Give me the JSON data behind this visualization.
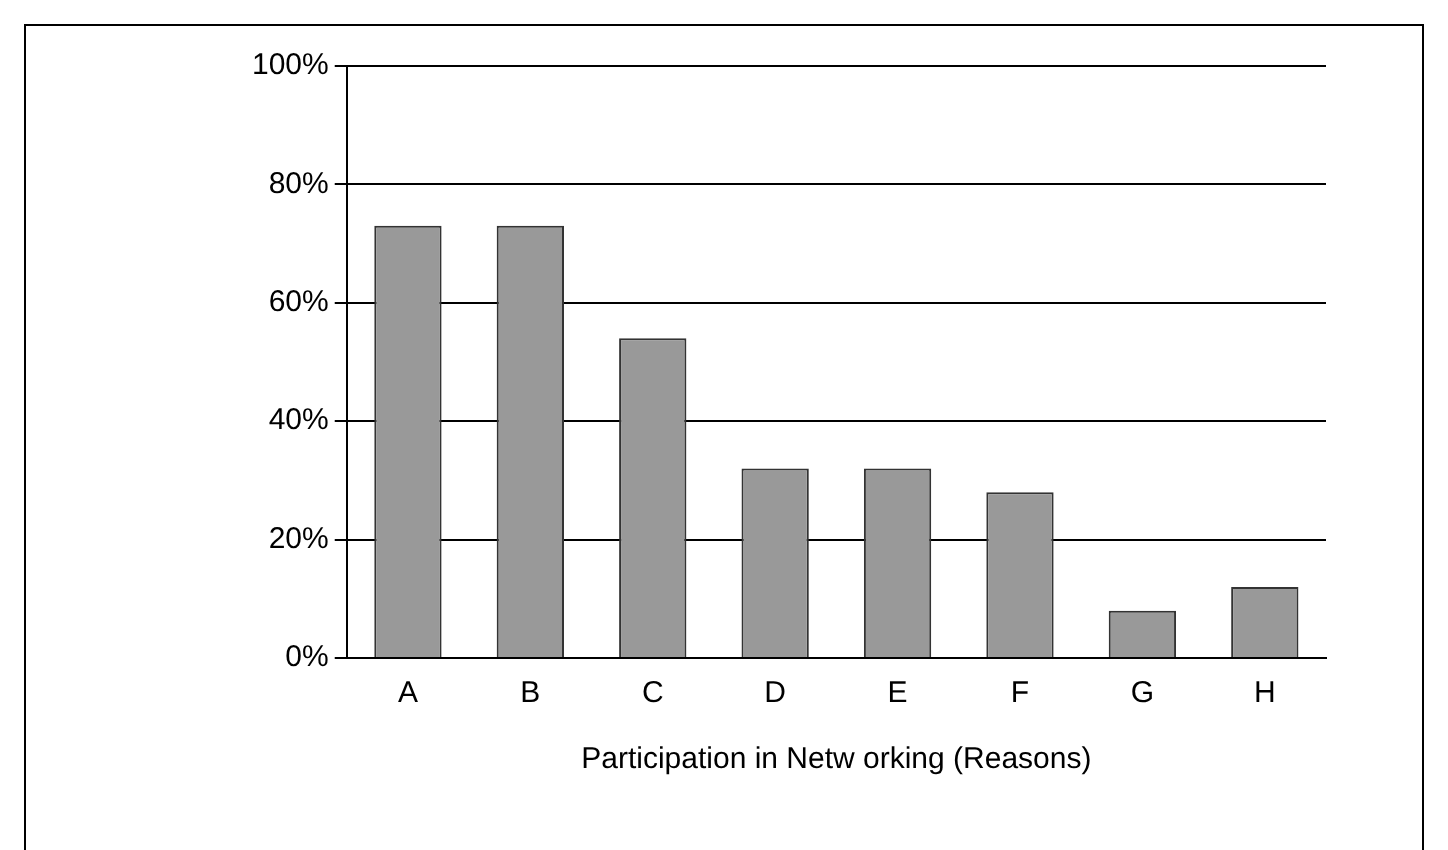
{
  "chart_data": {
    "type": "bar",
    "xlabel": "Participation in Netw orking (Reasons)",
    "categories": [
      "A",
      "B",
      "C",
      "D",
      "E",
      "F",
      "G",
      "H"
    ],
    "values": [
      73,
      73,
      54,
      32,
      32,
      28,
      8,
      12
    ],
    "color": "#999999",
    "ylim": [
      0,
      100
    ],
    "yticks": [
      {
        "value": 0,
        "label": "0%"
      },
      {
        "value": 20,
        "label": "20%"
      },
      {
        "value": 40,
        "label": "40%"
      },
      {
        "value": 60,
        "label": "60%"
      },
      {
        "value": 80,
        "label": "80%"
      },
      {
        "value": 100,
        "label": "100%"
      }
    ],
    "grid": "y",
    "legend": false
  }
}
